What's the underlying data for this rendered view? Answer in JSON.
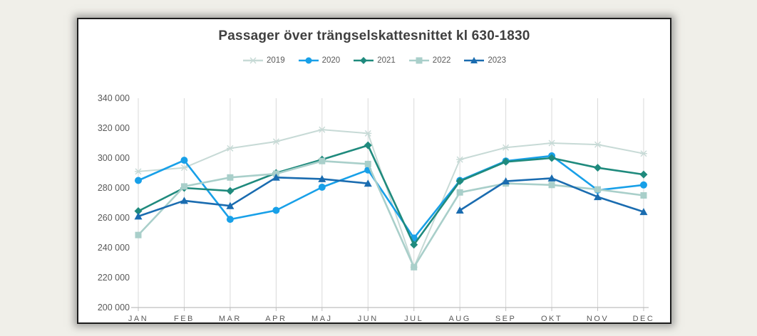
{
  "chart_data": {
    "type": "line",
    "title": "Passager över trängselskattesnittet kl 630-1830",
    "categories": [
      "JAN",
      "FEB",
      "MAR",
      "APR",
      "MAJ",
      "JUN",
      "JUL",
      "AUG",
      "SEP",
      "OKT",
      "NOV",
      "DEC"
    ],
    "series": [
      {
        "name": "2019",
        "color": "#c7dad6",
        "marker": "star",
        "values": [
          291000,
          293500,
          306500,
          311000,
          319000,
          316500,
          227000,
          299000,
          307000,
          310000,
          309000,
          303000
        ]
      },
      {
        "name": "2020",
        "color": "#18a0e8",
        "marker": "circle",
        "values": [
          285000,
          298500,
          259000,
          265000,
          280500,
          292000,
          246500,
          285000,
          298000,
          301500,
          278500,
          282000
        ]
      },
      {
        "name": "2021",
        "color": "#1f8a7d",
        "marker": "diamond",
        "values": [
          264500,
          280000,
          278000,
          290000,
          299000,
          308500,
          242000,
          284500,
          297500,
          300000,
          293500,
          289000
        ]
      },
      {
        "name": "2022",
        "color": "#a9cfca",
        "marker": "square",
        "values": [
          248500,
          281000,
          287000,
          289500,
          298000,
          296000,
          227000,
          277000,
          283000,
          282000,
          279000,
          275000
        ]
      },
      {
        "name": "2023",
        "color": "#1a6cb0",
        "marker": "triangle",
        "values": [
          261000,
          271500,
          268000,
          287000,
          286000,
          283000,
          null,
          265000,
          284500,
          286500,
          274000,
          264000
        ]
      }
    ],
    "ylim": [
      200000,
      340000
    ],
    "ytick_step": 20000,
    "ytick_labels": [
      "200 000",
      "220 000",
      "240 000",
      "260 000",
      "280 000",
      "300 000",
      "320 000",
      "340 000"
    ],
    "grid": "vertical-only",
    "legend_position": "top"
  }
}
